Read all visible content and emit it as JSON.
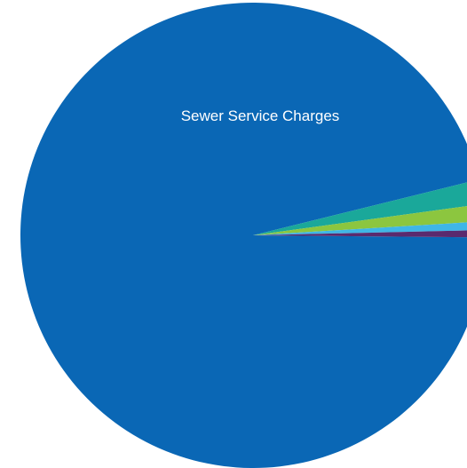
{
  "chart_data": {
    "type": "pie",
    "title": "",
    "slices": [
      {
        "label": "Sewer Service Charges",
        "value": 96.0,
        "color": "#0A67B5",
        "show_label": true
      },
      {
        "label": "",
        "value": 1.7,
        "color": "#1AA89A",
        "show_label": false
      },
      {
        "label": "",
        "value": 1.2,
        "color": "#8CC63F",
        "show_label": false
      },
      {
        "label": "",
        "value": 0.6,
        "color": "#3FB6E6",
        "show_label": false
      },
      {
        "label": "",
        "value": 0.5,
        "color": "#5A2A6E",
        "show_label": false
      }
    ],
    "legend": "none",
    "grid": false
  }
}
